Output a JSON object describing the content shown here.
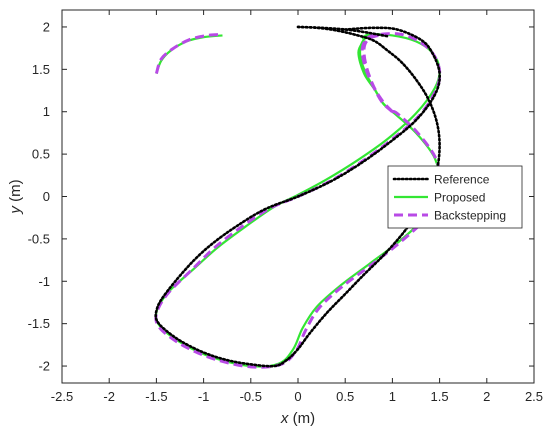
{
  "chart_data": {
    "type": "line",
    "title": "",
    "xlabel": {
      "var": "x",
      "unit": " (m)"
    },
    "ylabel": {
      "var": "y",
      "unit": " (m)"
    },
    "xlim": [
      -2.5,
      2.5
    ],
    "ylim": [
      -2.2,
      2.2
    ],
    "xticks": [
      "-2.5",
      "-2",
      "-1.5",
      "-1",
      "-0.5",
      "0",
      "0.5",
      "1",
      "1.5",
      "2",
      "2.5"
    ],
    "yticks": [
      "-2",
      "-1.5",
      "-1",
      "-0.5",
      "0",
      "0.5",
      "1",
      "1.5",
      "2"
    ],
    "xtick_values": [
      -2.5,
      -2,
      -1.5,
      -1,
      -0.5,
      0,
      0.5,
      1,
      1.5,
      2,
      2.5
    ],
    "ytick_values": [
      -2,
      -1.5,
      -1,
      -0.5,
      0,
      0.5,
      1,
      1.5,
      2
    ],
    "grid": false,
    "legend_position": "right",
    "series": [
      {
        "name": "Reference",
        "color": "#000000",
        "style": "dotted",
        "shape": "figure-eight",
        "points": [
          [
            0.0,
            2.0
          ],
          [
            0.2,
            1.99
          ],
          [
            0.4,
            1.96
          ],
          [
            0.6,
            1.91
          ],
          [
            0.8,
            1.84
          ],
          [
            0.95,
            1.72
          ],
          [
            1.1,
            1.58
          ],
          [
            1.25,
            1.38
          ],
          [
            1.38,
            1.15
          ],
          [
            1.47,
            0.88
          ],
          [
            1.5,
            0.6
          ],
          [
            1.47,
            0.3
          ],
          [
            1.38,
            0.02
          ],
          [
            1.25,
            -0.22
          ],
          [
            1.1,
            -0.45
          ],
          [
            0.9,
            -0.7
          ],
          [
            0.7,
            -0.92
          ],
          [
            0.5,
            -1.15
          ],
          [
            0.3,
            -1.38
          ],
          [
            0.12,
            -1.62
          ],
          [
            0.0,
            -1.8
          ],
          [
            -0.12,
            -1.93
          ],
          [
            -0.25,
            -2.0
          ],
          [
            -0.5,
            -1.98
          ],
          [
            -0.75,
            -1.93
          ],
          [
            -1.0,
            -1.84
          ],
          [
            -1.25,
            -1.7
          ],
          [
            -1.43,
            -1.55
          ],
          [
            -1.5,
            -1.45
          ],
          [
            -1.5,
            -1.35
          ],
          [
            -1.45,
            -1.22
          ],
          [
            -1.3,
            -1.0
          ],
          [
            -1.1,
            -0.75
          ],
          [
            -0.9,
            -0.55
          ],
          [
            -0.65,
            -0.35
          ],
          [
            -0.35,
            -0.15
          ],
          [
            0.0,
            0.0
          ],
          [
            0.35,
            0.18
          ],
          [
            0.65,
            0.38
          ],
          [
            0.95,
            0.62
          ],
          [
            1.25,
            0.9
          ],
          [
            1.45,
            1.2
          ],
          [
            1.5,
            1.45
          ],
          [
            1.42,
            1.7
          ],
          [
            1.3,
            1.85
          ],
          [
            1.05,
            1.97
          ],
          [
            0.8,
            1.99
          ],
          [
            0.5,
            1.97
          ]
        ]
      },
      {
        "name": "Proposed",
        "color": "#33e633",
        "style": "solid",
        "points": [
          [
            0.7,
            1.84
          ],
          [
            0.64,
            1.7
          ],
          [
            0.7,
            1.45
          ],
          [
            0.82,
            1.25
          ],
          [
            0.9,
            1.1
          ],
          [
            1.0,
            1.0
          ],
          [
            1.25,
            0.75
          ],
          [
            1.45,
            0.45
          ],
          [
            1.5,
            0.15
          ],
          [
            1.45,
            -0.1
          ],
          [
            1.3,
            -0.3
          ],
          [
            1.05,
            -0.55
          ],
          [
            0.75,
            -0.8
          ],
          [
            0.45,
            -1.05
          ],
          [
            0.2,
            -1.3
          ],
          [
            0.05,
            -1.55
          ],
          [
            -0.05,
            -1.8
          ],
          [
            -0.2,
            -1.97
          ],
          [
            -0.5,
            -2.0
          ],
          [
            -0.9,
            -1.9
          ],
          [
            -1.2,
            -1.75
          ],
          [
            -1.42,
            -1.58
          ],
          [
            -1.5,
            -1.45
          ],
          [
            -1.48,
            -1.3
          ],
          [
            -1.35,
            -1.1
          ],
          [
            -1.1,
            -0.85
          ],
          [
            -0.85,
            -0.6
          ],
          [
            -0.55,
            -0.35
          ],
          [
            -0.25,
            -0.12
          ],
          [
            0.0,
            0.02
          ],
          [
            0.3,
            0.2
          ],
          [
            0.62,
            0.42
          ],
          [
            0.95,
            0.68
          ],
          [
            1.25,
            0.98
          ],
          [
            1.45,
            1.28
          ],
          [
            1.5,
            1.5
          ],
          [
            1.42,
            1.7
          ],
          [
            1.25,
            1.83
          ],
          [
            1.0,
            1.9
          ],
          [
            0.75,
            1.91
          ],
          [
            0.68,
            1.86
          ]
        ]
      },
      {
        "name": "Backstepping",
        "color": "#b84ae6",
        "style": "dashed",
        "points": [
          [
            1.0,
            1.0
          ],
          [
            0.9,
            1.1
          ],
          [
            0.82,
            1.25
          ],
          [
            0.72,
            1.5
          ],
          [
            0.68,
            1.72
          ],
          [
            0.72,
            1.85
          ],
          [
            0.8,
            1.9
          ],
          [
            1.05,
            1.92
          ],
          [
            1.25,
            1.85
          ],
          [
            1.42,
            1.7
          ],
          [
            1.5,
            1.48
          ],
          [
            1.46,
            1.25
          ],
          [
            1.28,
            0.95
          ],
          [
            0.98,
            0.66
          ],
          [
            0.66,
            0.4
          ],
          [
            0.34,
            0.18
          ],
          [
            0.0,
            0.0
          ],
          [
            -0.3,
            -0.14
          ],
          [
            -0.6,
            -0.36
          ],
          [
            -0.88,
            -0.6
          ],
          [
            -1.12,
            -0.86
          ],
          [
            -1.36,
            -1.12
          ],
          [
            -1.48,
            -1.32
          ],
          [
            -1.5,
            -1.48
          ],
          [
            -1.4,
            -1.62
          ],
          [
            -1.18,
            -1.78
          ],
          [
            -0.88,
            -1.92
          ],
          [
            -0.5,
            -2.01
          ],
          [
            -0.18,
            -1.98
          ],
          [
            -0.02,
            -1.82
          ],
          [
            0.08,
            -1.58
          ],
          [
            0.22,
            -1.32
          ],
          [
            0.46,
            -1.07
          ],
          [
            0.76,
            -0.82
          ],
          [
            1.06,
            -0.56
          ],
          [
            1.32,
            -0.3
          ],
          [
            1.47,
            -0.08
          ],
          [
            1.51,
            0.15
          ],
          [
            1.46,
            0.45
          ],
          [
            1.26,
            0.76
          ],
          [
            1.05,
            0.98
          ],
          [
            1.0,
            1.0
          ]
        ]
      }
    ],
    "lead_segments": {
      "Reference": [
        [
          0.0,
          2.0
        ],
        [
          0.25,
          1.99
        ],
        [
          0.5,
          1.97
        ],
        [
          0.7,
          1.94
        ],
        [
          0.85,
          1.91
        ],
        [
          0.95,
          1.89
        ]
      ],
      "Proposed": [
        [
          1.0,
          1.0
        ],
        [
          0.9,
          1.1
        ],
        [
          0.82,
          1.25
        ],
        [
          0.72,
          1.45
        ],
        [
          0.66,
          1.65
        ],
        [
          0.68,
          1.82
        ],
        [
          0.78,
          1.91
        ],
        [
          0.95,
          1.9
        ]
      ],
      "Backstepping": [
        [
          1.0,
          1.0
        ],
        [
          0.9,
          1.12
        ],
        [
          0.8,
          1.3
        ],
        [
          0.72,
          1.55
        ],
        [
          0.7,
          1.75
        ],
        [
          0.75,
          1.86
        ],
        [
          0.85,
          1.9
        ]
      ]
    },
    "trajectory_tail": {
      "Proposed": [
        [
          -1.5,
          1.45
        ],
        [
          -1.45,
          1.6
        ],
        [
          -1.35,
          1.72
        ],
        [
          -1.18,
          1.83
        ],
        [
          -1.0,
          1.88
        ],
        [
          -0.8,
          1.9
        ]
      ],
      "Backstepping": [
        [
          -1.5,
          1.45
        ],
        [
          -1.45,
          1.62
        ],
        [
          -1.33,
          1.74
        ],
        [
          -1.15,
          1.85
        ],
        [
          -0.96,
          1.9
        ],
        [
          -0.82,
          1.91
        ]
      ]
    },
    "legend": [
      "Reference",
      "Proposed",
      "Backstepping"
    ]
  }
}
